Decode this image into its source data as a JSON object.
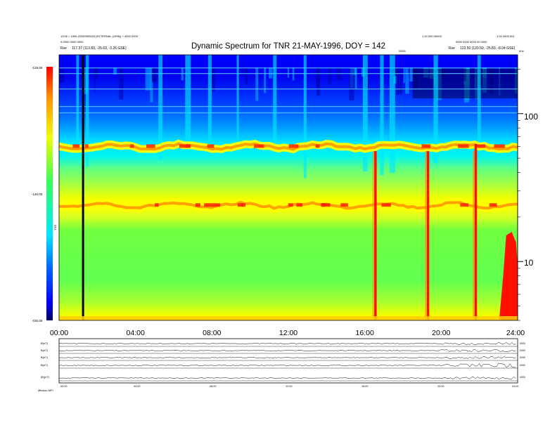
{
  "header": {
    "title": "Dynamic Spectrum for TNR 21-MAY-1996, DOY = 142",
    "left_line1": "13:00 = 1996 22000000000 (EXTERNAL (1996)) + 4000 0000",
    "left_line2": "0-0000 0000 0000",
    "left_line3": "117.37 (113.83, -25.63, -3.26 GSE)",
    "left_prefix": "Rse",
    "right_line1": "1.10 000 00000",
    "right_line1b": "1.04 0000 001",
    "right_line2": "0000 0000 0000 00 0000",
    "right_line3": "123.50 (120.50, -25.83, -8.04 GSE)",
    "right_prefix": "Rse",
    "right_small": "00000",
    "corner_label": "kHz"
  },
  "chart_data": {
    "type": "heatmap",
    "title": "Dynamic Spectrum for TNR 21-MAY-1996, DOY = 142",
    "xlabel": "",
    "ylabel": "",
    "x_range_hours": [
      0,
      24
    ],
    "x_tick_labels": [
      "00:00",
      "04:00",
      "08:00",
      "12:00",
      "16:00",
      "20:00",
      "24:00"
    ],
    "y_scale": "log",
    "y_unit": "kHz",
    "y_range_khz": [
      4,
      250
    ],
    "y_tick_labels": [
      "100",
      "10"
    ],
    "y_tick_values": [
      100,
      10
    ],
    "colorbar": {
      "label": "TNR",
      "range": [
        -155,
        -125
      ],
      "tick_labels": [
        "-125.00",
        "-140.00",
        "-155.00"
      ],
      "tick_values": [
        -125,
        -140,
        -155
      ],
      "colors": [
        "#000060",
        "#0000ff",
        "#0060ff",
        "#00e8ff",
        "#38ff58",
        "#f0ff00",
        "#ff9000",
        "#ff0000"
      ]
    },
    "bands": [
      {
        "name": "upper band",
        "freq_khz": 60
      },
      {
        "name": "lower band",
        "freq_khz": 24
      }
    ],
    "bursts_hours": [
      16.55,
      19.3,
      21.8,
      23.4
    ]
  },
  "bottom_panel": {
    "row_labels": [
      "B(nT)",
      "B(nT)",
      "B(nT)",
      "B(nT)",
      "|B|(nT)"
    ],
    "right_labels": [
      "0000",
      "0000",
      "0000",
      "0000",
      "0000"
    ],
    "tick_labels": [
      "00:00",
      "04:00",
      "08:00",
      "12:00",
      "16:00",
      "20:00",
      "24:00"
    ],
    "footer_label": "Mission  MFI"
  }
}
